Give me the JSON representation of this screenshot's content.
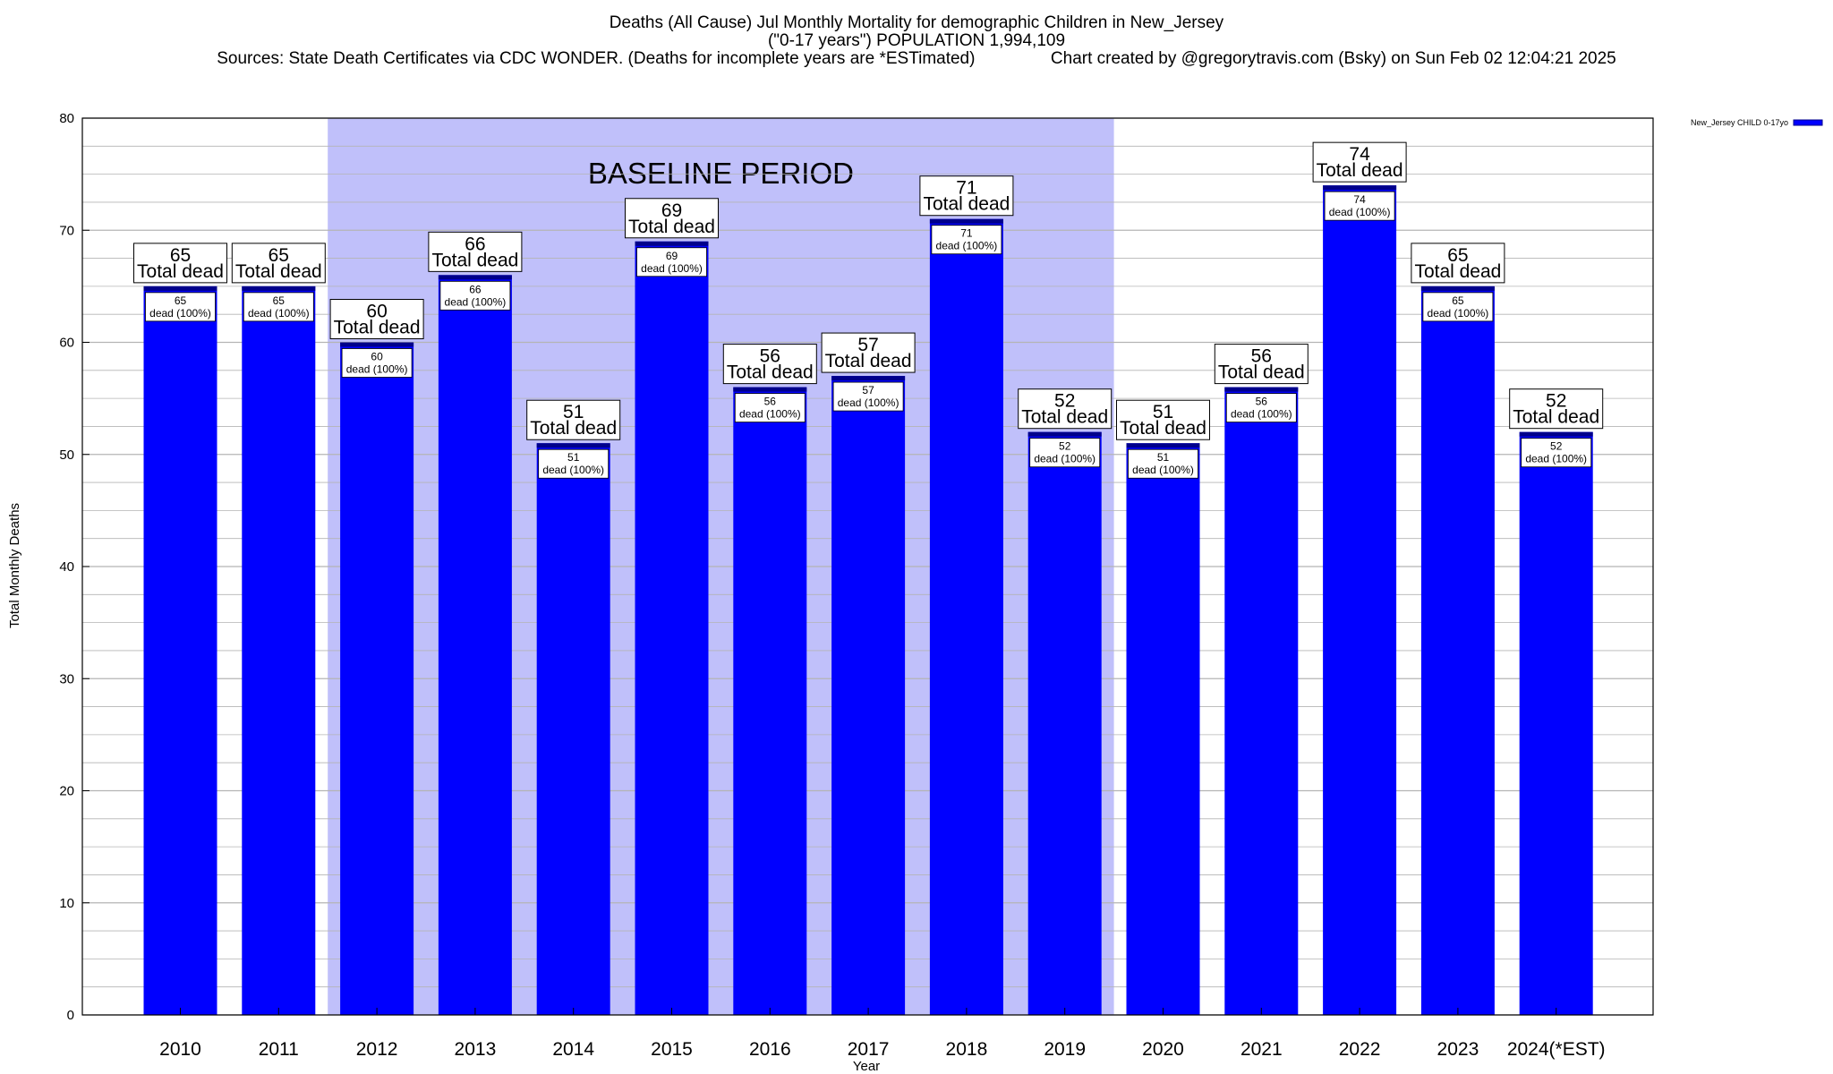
{
  "header": {
    "title_line1": "Deaths (All Cause) Jul Monthly Mortality for demographic Children in New_Jersey",
    "title_line2": "(\"0-17 years\") POPULATION 1,994,109",
    "title_line3": "Sources: State Death Certificates via CDC WONDER. (Deaths for incomplete years are *ESTimated)                Chart created by @gregorytravis.com (Bsky) on Sun Feb 02 12:04:21 2025"
  },
  "colors": {
    "bar": "#0000ff",
    "bar_cap": "#00008b",
    "baseline_shade": "#c0c0fa",
    "grid": "#b4b4b4"
  },
  "chart_data": {
    "type": "bar",
    "title": "Deaths (All Cause) Jul Monthly Mortality for demographic Children in New_Jersey",
    "xlabel": "Year",
    "ylabel": "Total Monthly Deaths",
    "ylim": [
      0,
      80
    ],
    "yticks": [
      0,
      10,
      20,
      30,
      40,
      50,
      60,
      70,
      80
    ],
    "grid": true,
    "legend_position": "top-right",
    "categories": [
      "2010",
      "2011",
      "2012",
      "2013",
      "2014",
      "2015",
      "2016",
      "2017",
      "2018",
      "2019",
      "2020",
      "2021",
      "2022",
      "2023",
      "2024(*EST)"
    ],
    "series": [
      {
        "name": "New_Jersey CHILD 0-17yo",
        "values": [
          65,
          65,
          60,
          66,
          51,
          69,
          56,
          57,
          71,
          52,
          51,
          56,
          74,
          65,
          52
        ]
      }
    ],
    "outer_label_suffix": "Total dead",
    "inner_label_suffix": "dead (100%)",
    "baseline_period": {
      "label": "BASELINE PERIOD",
      "start": "2012",
      "end": "2019"
    }
  }
}
